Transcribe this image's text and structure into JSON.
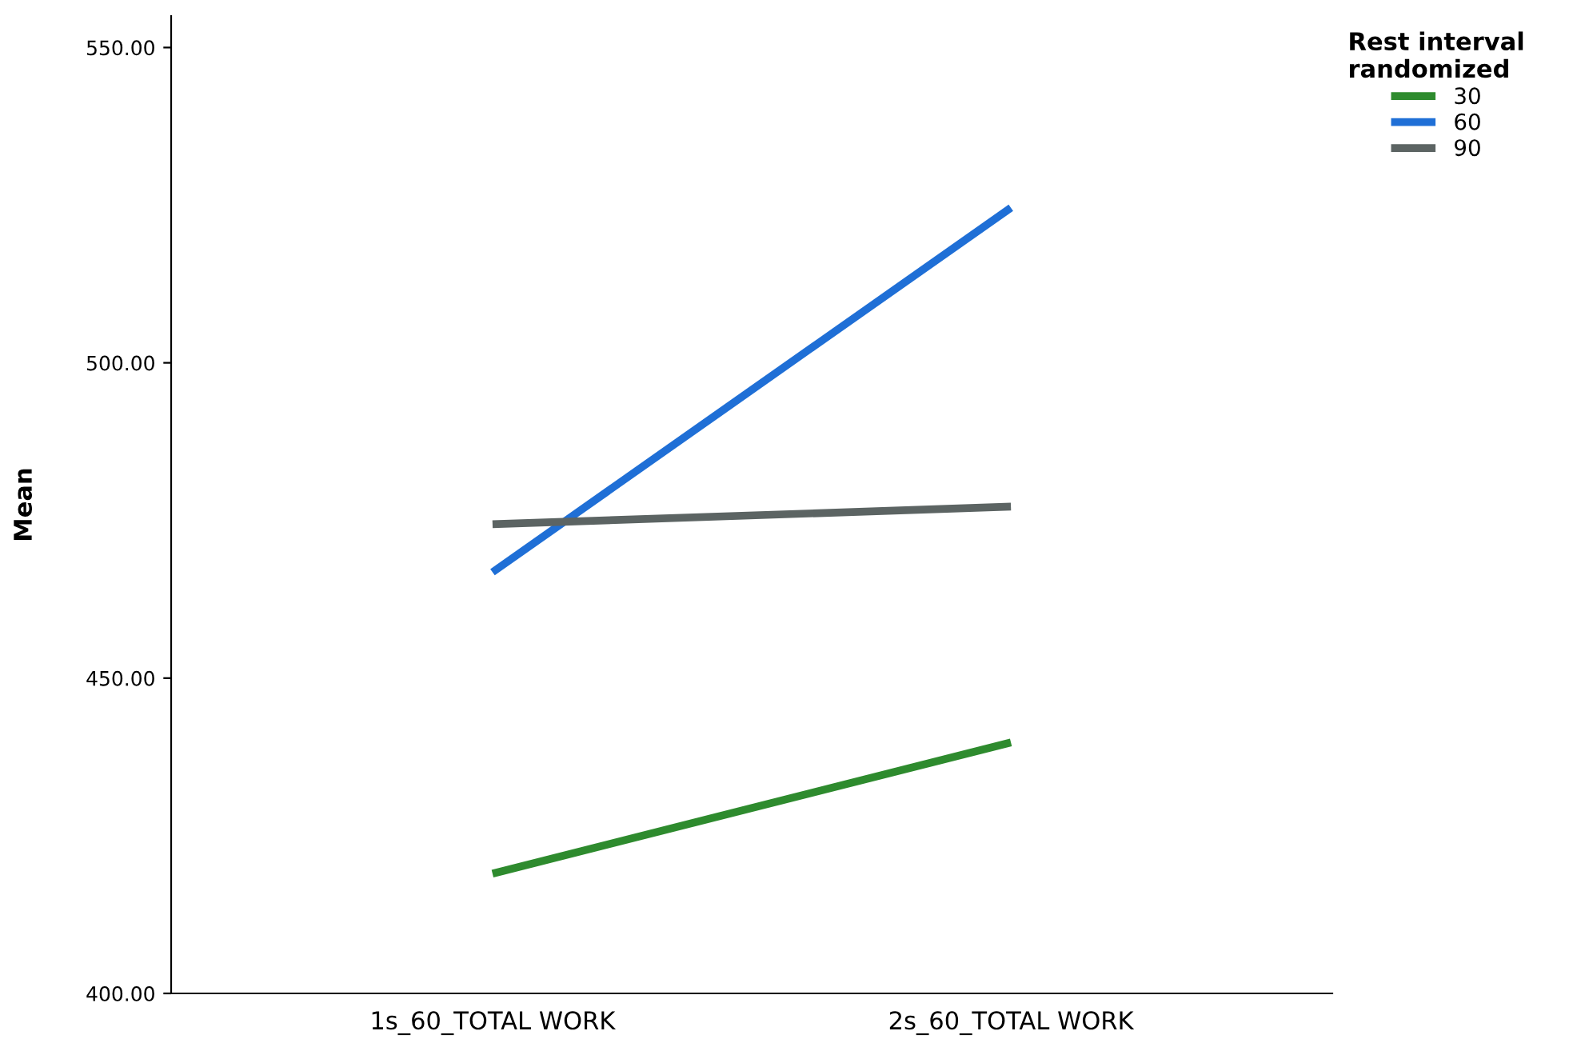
{
  "chart_data": {
    "type": "line",
    "ylabel": "Mean",
    "legend_title": "Rest interval\nrandomized",
    "legend": "top right",
    "categories": [
      "1s_60_TOTAL WORK",
      "2s_60_TOTAL WORK"
    ],
    "series": [
      {
        "name": "30",
        "color": "#2e8b2e",
        "values": [
          419.0,
          439.8
        ]
      },
      {
        "name": "60",
        "color": "#1f6fd6",
        "values": [
          466.8,
          524.6
        ]
      },
      {
        "name": "90",
        "color": "#5c6463",
        "values": [
          474.4,
          477.2
        ]
      }
    ],
    "ylim": [
      400,
      555
    ],
    "yticks": [
      {
        "value": 400,
        "label": "400.00"
      },
      {
        "value": 450,
        "label": "450.00"
      },
      {
        "value": 500,
        "label": "500.00"
      },
      {
        "value": 550,
        "label": "550.00"
      }
    ],
    "grid": false,
    "line_style": "solid",
    "marker": "none"
  }
}
